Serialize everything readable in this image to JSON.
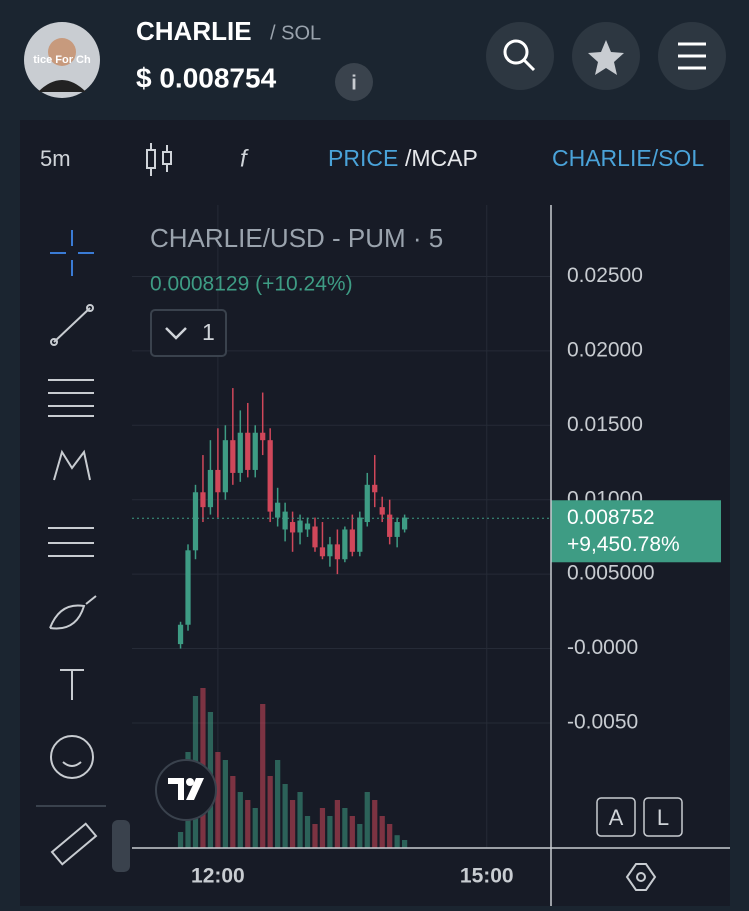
{
  "header": {
    "name": "CHARLIE",
    "pair": "/ SOL",
    "price": "$ 0.008754",
    "avatar_text": "tice For Ch"
  },
  "toolbar": {
    "interval": "5m",
    "price": "PRICE",
    "mcap": "/MCAP",
    "pair": "CHARLIE/SOL"
  },
  "chart_data": {
    "type": "candlestick",
    "title": "CHARLIE/USD - PUM · 5",
    "change": "0.0008129 (+10.24%)",
    "indicator_count": "1",
    "x": [
      -25,
      -20,
      -15,
      -10,
      -5,
      0,
      5,
      10,
      15,
      20,
      25,
      30,
      35,
      40,
      45,
      50,
      55,
      60,
      65,
      70,
      75,
      80,
      85,
      90,
      95,
      100,
      105,
      110,
      115,
      120,
      125
    ],
    "open": [
      0.0003,
      0.0016,
      0.0066,
      0.0105,
      0.0095,
      0.012,
      0.0105,
      0.014,
      0.0118,
      0.0145,
      0.012,
      0.0145,
      0.014,
      0.0088,
      0.008,
      0.0085,
      0.0078,
      0.008,
      0.0082,
      0.0068,
      0.0062,
      0.007,
      0.006,
      0.008,
      0.0065,
      0.0085,
      0.011,
      0.0095,
      0.009,
      0.0075,
      0.008
    ],
    "high": [
      0.0018,
      0.007,
      0.011,
      0.013,
      0.014,
      0.0148,
      0.015,
      0.0175,
      0.016,
      0.0165,
      0.015,
      0.0172,
      0.0148,
      0.0108,
      0.0098,
      0.0092,
      0.009,
      0.0088,
      0.0088,
      0.0085,
      0.0075,
      0.008,
      0.0082,
      0.009,
      0.0092,
      0.0118,
      0.013,
      0.0102,
      0.01,
      0.0088,
      0.009
    ],
    "low": [
      0,
      0.0012,
      0.006,
      0.0085,
      0.009,
      0.0088,
      0.01,
      0.011,
      0.0112,
      0.0115,
      0.0115,
      0.013,
      0.0085,
      0.0082,
      0.0072,
      0.0065,
      0.007,
      0.0075,
      0.0065,
      0.006,
      0.0055,
      0.005,
      0.0058,
      0.0062,
      0.0062,
      0.0082,
      0.0095,
      0.0085,
      0.007,
      0.0068,
      0.0078
    ],
    "close": [
      0.0016,
      0.0066,
      0.0105,
      0.0095,
      0.012,
      0.0105,
      0.014,
      0.0118,
      0.0145,
      0.012,
      0.0145,
      0.014,
      0.0092,
      0.0098,
      0.0092,
      0.0078,
      0.0086,
      0.0084,
      0.0068,
      0.0062,
      0.007,
      0.006,
      0.008,
      0.0065,
      0.0088,
      0.011,
      0.0105,
      0.009,
      0.0075,
      0.0085,
      0.0088
    ],
    "volume": [
      10,
      60,
      95,
      100,
      85,
      60,
      55,
      45,
      35,
      30,
      25,
      90,
      45,
      55,
      40,
      30,
      35,
      20,
      15,
      25,
      20,
      30,
      25,
      20,
      15,
      35,
      30,
      20,
      15,
      8,
      5
    ],
    "up_color": "#3e9c84",
    "down_color": "#d0475a",
    "xlim": [
      -57.5,
      223
    ],
    "xticks": [
      {
        "value": 0,
        "label": "12:00"
      },
      {
        "value": 180,
        "label": "15:00"
      }
    ],
    "ylim": [
      -0.0134,
      0.0298
    ],
    "yticks": [
      {
        "value": 0.025,
        "label": "0.02500"
      },
      {
        "value": 0.02,
        "label": "0.02000"
      },
      {
        "value": 0.015,
        "label": "0.01500"
      },
      {
        "value": 0.01,
        "label": "0.01000"
      },
      {
        "value": 0.005,
        "label": "0.005000"
      },
      {
        "value": 0,
        "label": "-0.0000"
      },
      {
        "value": -0.005,
        "label": "-0.0050"
      }
    ],
    "last_price": 0.008752,
    "last_change": "+9,450.78%",
    "grid": true,
    "buttons": [
      "A",
      "L"
    ]
  }
}
